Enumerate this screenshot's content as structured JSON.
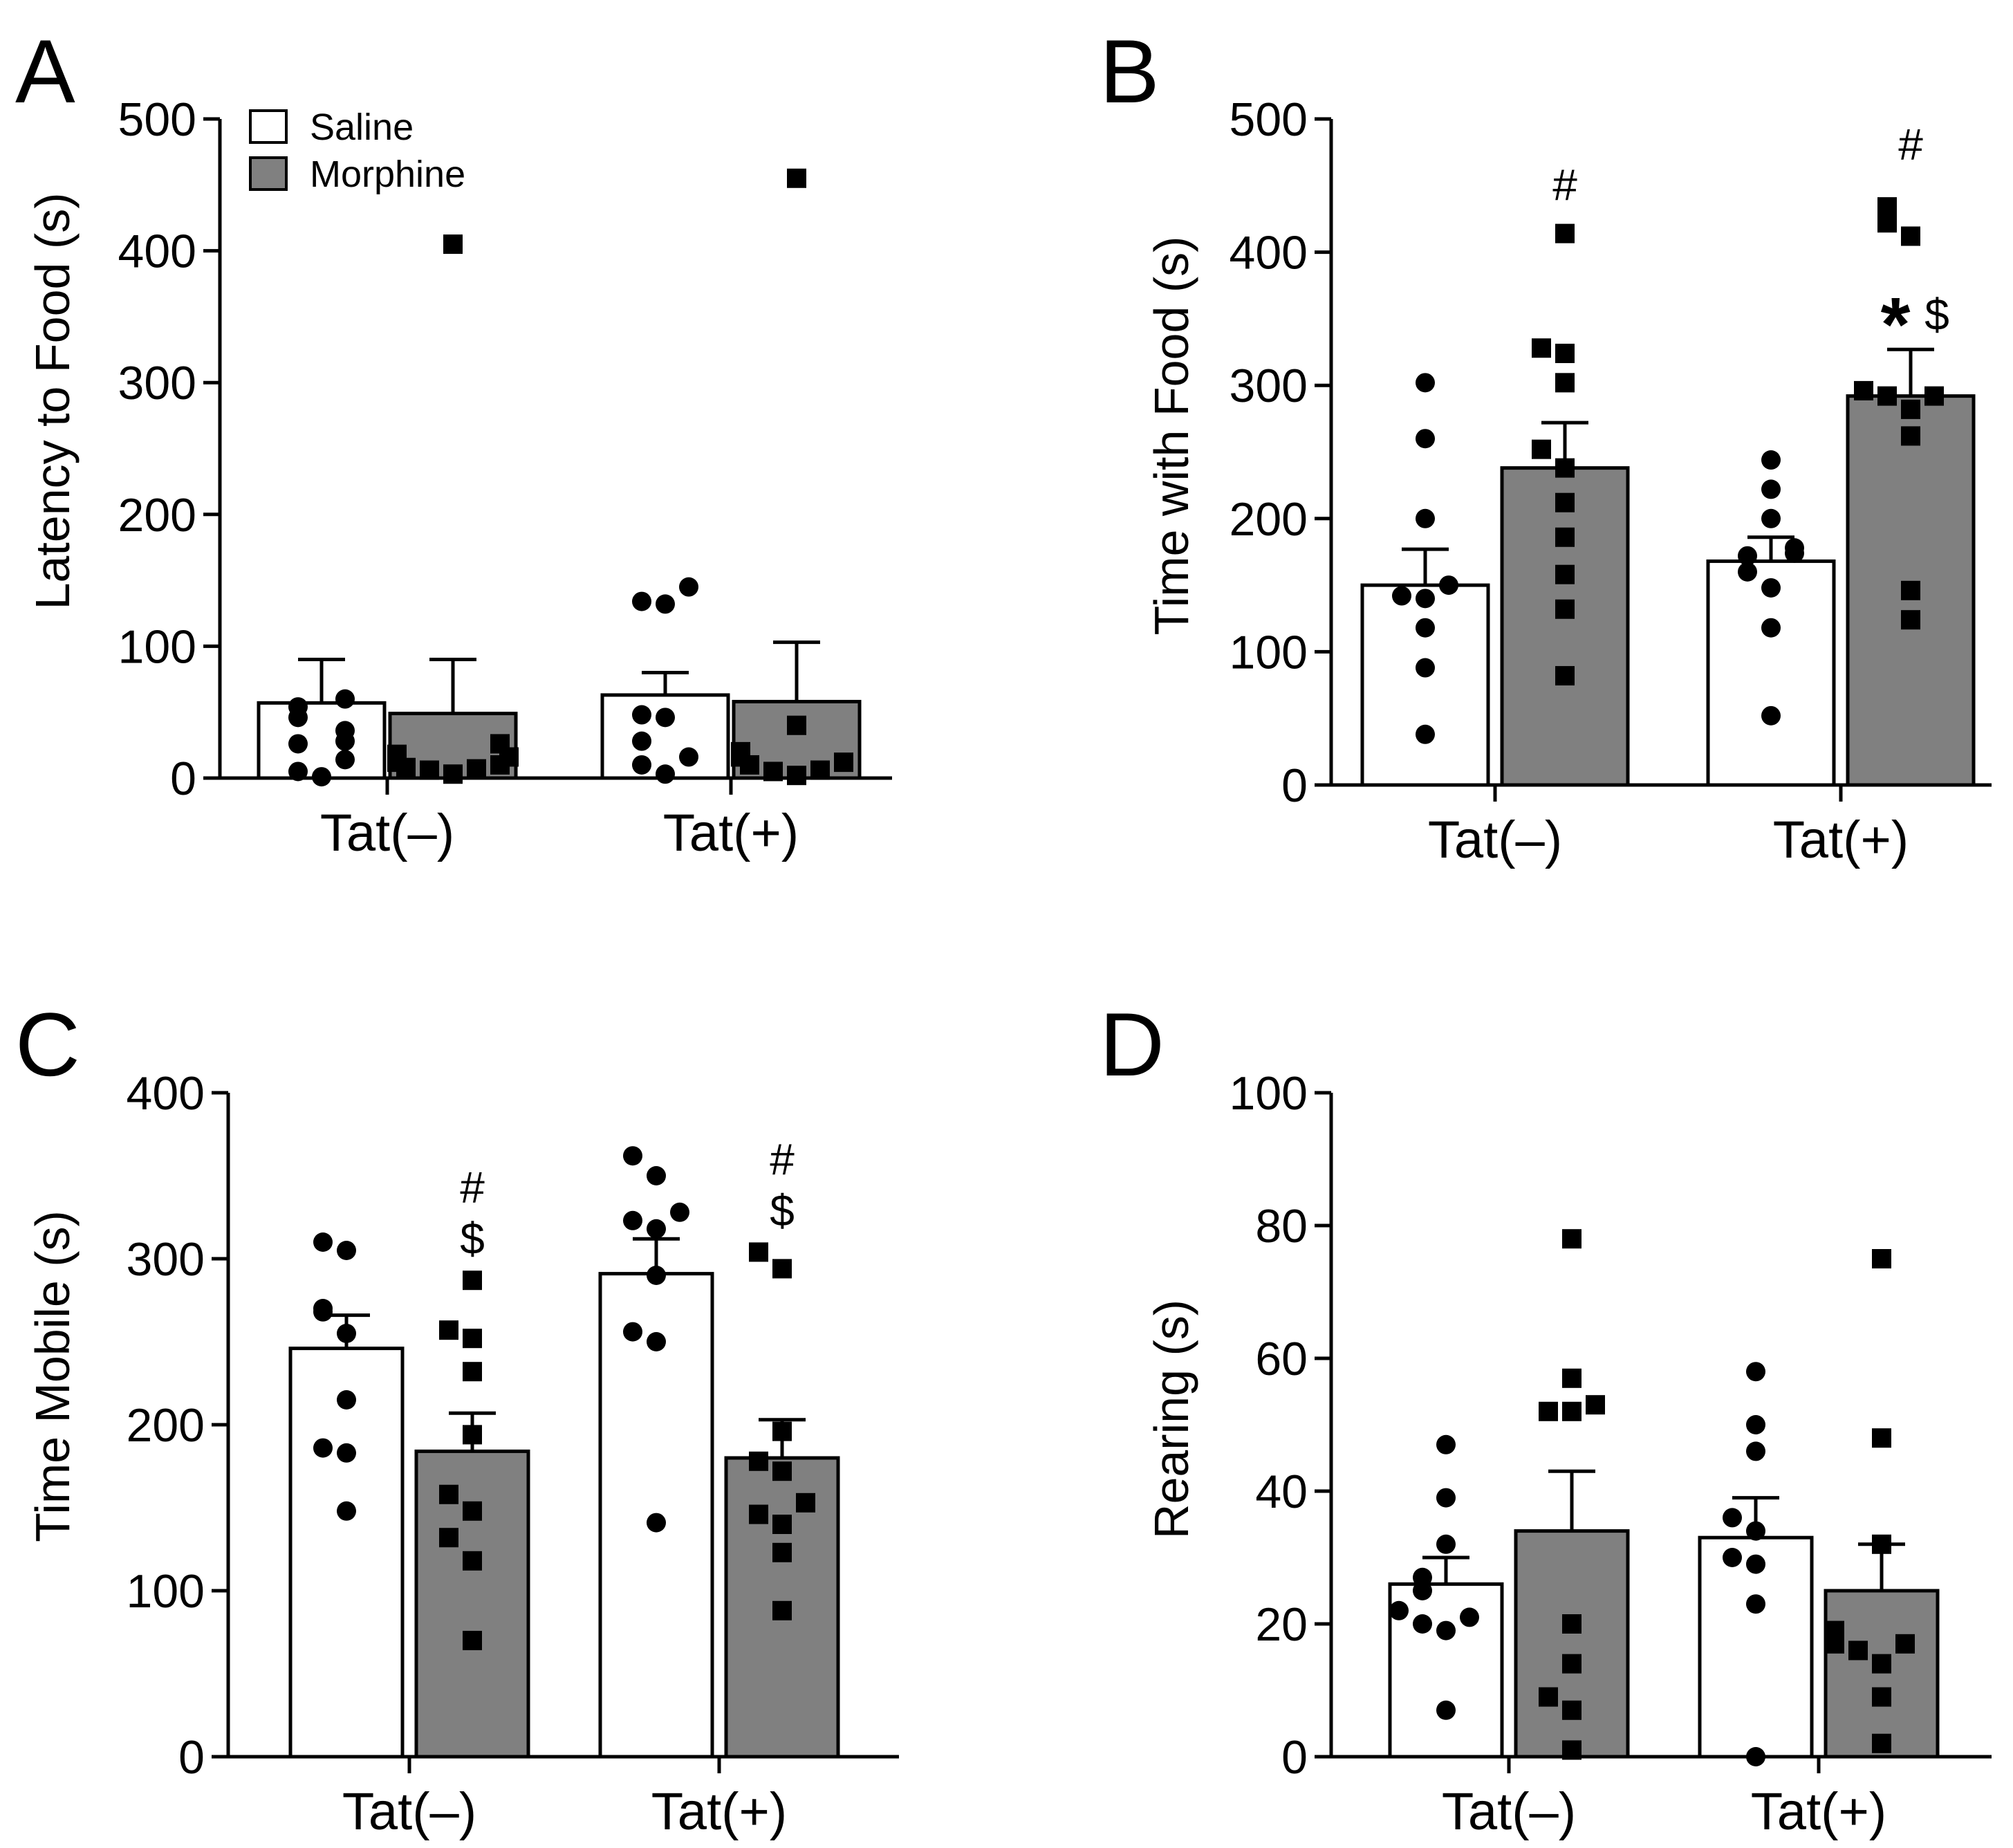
{
  "colors": {
    "saline": "#ffffff",
    "morphine": "#808080",
    "stroke": "#000000"
  },
  "legend": {
    "saline_label": "Saline",
    "morphine_label": "Morphine"
  },
  "chart_data": [
    {
      "panel": "A",
      "type": "bar",
      "ylabel": "Latency to Food (s)",
      "ylim": [
        0,
        500
      ],
      "yticks": [
        0,
        100,
        200,
        300,
        400,
        500
      ],
      "categories": [
        "Tat(–)",
        "Tat(+)"
      ],
      "legend_position": "top-left",
      "series": [
        {
          "name": "Saline",
          "values": [
            57,
            63
          ],
          "errors": [
            90,
            80
          ],
          "points": [
            [
              1,
              5,
              14,
              26,
              28,
              36,
              46,
              54,
              60
            ],
            [
              3,
              10,
              16,
              28,
              46,
              48,
              132,
              134,
              145
            ]
          ],
          "annotations": [
            "",
            ""
          ]
        },
        {
          "name": "Morphine",
          "values": [
            49,
            58
          ],
          "errors": [
            90,
            103
          ],
          "points": [
            [
              3,
              6,
              7,
              8,
              10,
              12,
              16,
              18,
              26,
              405
            ],
            [
              2,
              5,
              6,
              10,
              12,
              16,
              20,
              40,
              455
            ]
          ],
          "annotations": [
            "",
            ""
          ]
        }
      ]
    },
    {
      "panel": "B",
      "type": "bar",
      "ylabel": "Time with Food (s)",
      "ylim": [
        0,
        500
      ],
      "yticks": [
        0,
        100,
        200,
        300,
        400,
        500
      ],
      "categories": [
        "Tat(–)",
        "Tat(+)"
      ],
      "series": [
        {
          "name": "Saline",
          "values": [
            150,
            168
          ],
          "errors": [
            177,
            186
          ],
          "points": [
            [
              38,
              88,
              118,
              140,
              142,
              150,
              200,
              260,
              302
            ],
            [
              52,
              118,
              148,
              160,
              172,
              174,
              178,
              200,
              222,
              244
            ]
          ],
          "annotations": [
            "",
            ""
          ]
        },
        {
          "name": "Morphine",
          "values": [
            238,
            292
          ],
          "errors": [
            272,
            327
          ],
          "points": [
            [
              82,
              132,
              158,
              186,
              212,
              238,
              252,
              302,
              324,
              328,
              414
            ],
            [
              124,
              146,
              262,
              282,
              292,
              292,
              296,
              412,
              422,
              434
            ]
          ],
          "annotations": [
            "#",
            "#*$"
          ]
        }
      ]
    },
    {
      "panel": "C",
      "type": "bar",
      "ylabel": "Time Mobile (s)",
      "ylim": [
        0,
        400
      ],
      "yticks": [
        0,
        100,
        200,
        300,
        400
      ],
      "categories": [
        "Tat(–)",
        "Tat(+)"
      ],
      "series": [
        {
          "name": "Saline",
          "values": [
            246,
            291
          ],
          "errors": [
            266,
            312
          ],
          "points": [
            [
              148,
              183,
              186,
              215,
              255,
              268,
              270,
              305,
              310
            ],
            [
              141,
              250,
              256,
              290,
              318,
              323,
              328,
              350,
              362
            ]
          ],
          "annotations": [
            "",
            ""
          ]
        },
        {
          "name": "Morphine",
          "values": [
            184,
            180
          ],
          "errors": [
            207,
            203
          ],
          "points": [
            [
              70,
              118,
              132,
              148,
              158,
              194,
              232,
              252,
              257,
              287
            ],
            [
              88,
              123,
              140,
              146,
              153,
              172,
              178,
              196,
              294,
              304
            ]
          ],
          "annotations": [
            "#$",
            "#$"
          ]
        }
      ]
    },
    {
      "panel": "D",
      "type": "bar",
      "ylabel": "Rearing (s)",
      "ylim": [
        0,
        100
      ],
      "yticks": [
        0,
        20,
        40,
        60,
        80,
        100
      ],
      "categories": [
        "Tat(–)",
        "Tat(+)"
      ],
      "series": [
        {
          "name": "Saline",
          "values": [
            26,
            33
          ],
          "errors": [
            30,
            39
          ],
          "points": [
            [
              7,
              19,
              20,
              21,
              22,
              25,
              27,
              32,
              39,
              47
            ],
            [
              0,
              23,
              29,
              30,
              34,
              36,
              46,
              50,
              58
            ]
          ],
          "annotations": [
            "",
            ""
          ]
        },
        {
          "name": "Morphine",
          "values": [
            34,
            25
          ],
          "errors": [
            43,
            32
          ],
          "points": [
            [
              1,
              7,
              9,
              14,
              20,
              52,
              52,
              53,
              57,
              78
            ],
            [
              2,
              9,
              14,
              16,
              17,
              17,
              19,
              32,
              48,
              75
            ]
          ],
          "annotations": [
            "",
            ""
          ]
        }
      ]
    }
  ]
}
